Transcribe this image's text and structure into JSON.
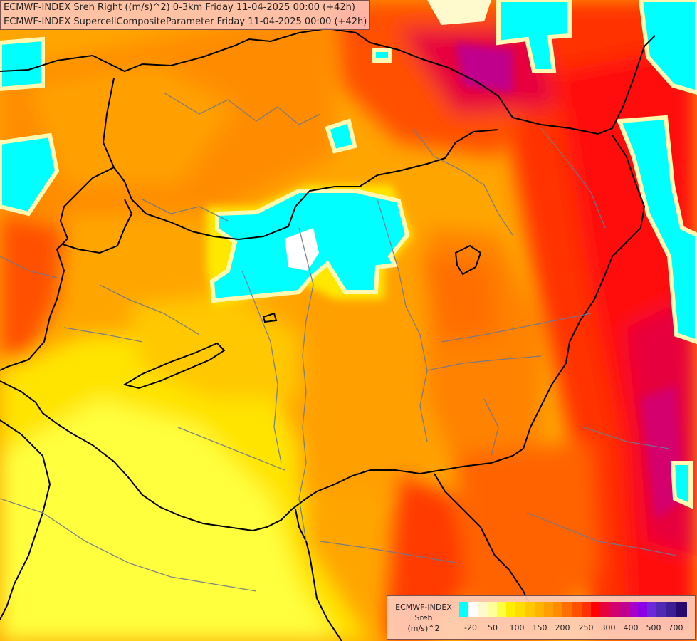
{
  "header": {
    "line1": "ECMWF-INDEX Sreh Right ((m/s)^2) 0-3km Friday 11-04-2025 00:00 (+42h)",
    "line2": "ECMWF-INDEX SupercellCompositeParameter Friday 11-04-2025 00:00 (+42h)"
  },
  "legend": {
    "title_line1": "ECMWF-INDEX",
    "title_line2": "Sreh",
    "title_line3": "(m/s)^2",
    "colors": [
      "#00ffff",
      "#ffffff",
      "#fffacd",
      "#ffff99",
      "#ffff40",
      "#ffee00",
      "#ffdd00",
      "#ffc800",
      "#ffb400",
      "#ffa000",
      "#ff8c00",
      "#ff6e00",
      "#ff5000",
      "#ff3000",
      "#ff0000",
      "#e6003c",
      "#d4006e",
      "#c0008c",
      "#a800c8",
      "#8c00e6",
      "#6e28dc",
      "#5028b4",
      "#3c1e96",
      "#280a6e"
    ],
    "ticks": [
      "-20",
      "50",
      "100",
      "150",
      "200",
      "250",
      "300",
      "400",
      "500",
      "700"
    ]
  },
  "colors": {
    "lowest": "#00ffff",
    "low": "#ffff00",
    "mid": "#ffa500",
    "high": "#ff0000",
    "highest": "#c8008c"
  }
}
